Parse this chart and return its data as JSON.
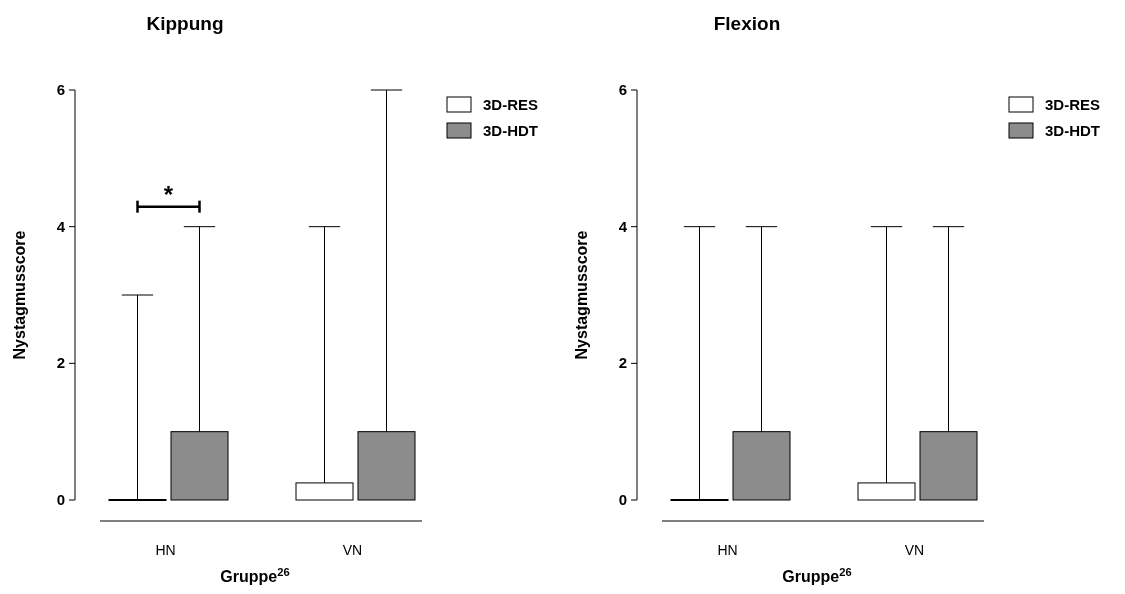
{
  "chart_data": [
    {
      "type": "bar",
      "title": "Kippung",
      "xlabel": "Gruppe$^{26}$",
      "ylabel": "Nystagmusscore",
      "categories": [
        "HN",
        "VN"
      ],
      "ylim": [
        0,
        6
      ],
      "yticks": [
        0,
        2,
        4,
        6
      ],
      "legend": "top right",
      "annotations": [
        "*"
      ],
      "series": [
        {
          "name": "3D-RES",
          "color": "#ffffff",
          "values": [
            0,
            0.25
          ],
          "errors": [
            [
              0,
              3
            ],
            [
              0.25,
              4
            ]
          ]
        },
        {
          "name": "3D-HDT",
          "color": "#8c8c8c",
          "values": [
            1,
            1
          ],
          "errors": [
            [
              1,
              4
            ],
            [
              1,
              6
            ]
          ]
        }
      ]
    },
    {
      "type": "bar",
      "title": "Flexion",
      "xlabel": "Gruppe$^{26}$",
      "ylabel": "Nystagmusscore",
      "categories": [
        "HN",
        "VN"
      ],
      "ylim": [
        0,
        6
      ],
      "yticks": [
        0,
        2,
        4,
        6
      ],
      "legend": "top right",
      "series": [
        {
          "name": "3D-RES",
          "color": "#ffffff",
          "values": [
            0,
            0.25
          ],
          "errors": [
            [
              0,
              4
            ],
            [
              0.25,
              4
            ]
          ]
        },
        {
          "name": "3D-HDT",
          "color": "#8c8c8c",
          "values": [
            1,
            1
          ],
          "errors": [
            [
              1,
              4
            ],
            [
              1,
              4
            ]
          ]
        }
      ]
    }
  ]
}
